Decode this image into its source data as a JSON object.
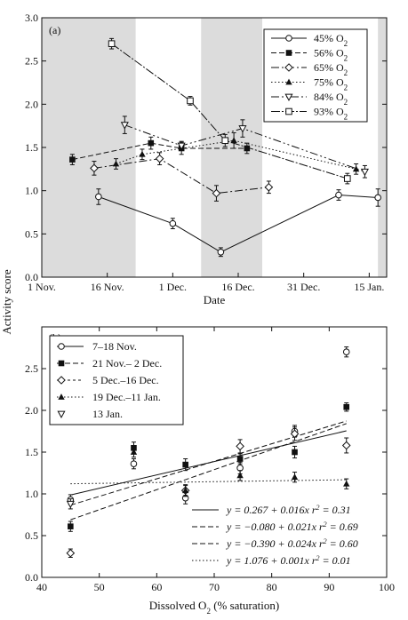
{
  "y_axis_label": "Activity score",
  "chart_data": [
    {
      "type": "line",
      "panel_label": "(a)",
      "xlabel": "Date",
      "ylabel": "Activity score",
      "x_ticks": [
        {
          "value": 0,
          "label": "1 Nov."
        },
        {
          "value": 15,
          "label": "16 Nov."
        },
        {
          "value": 30,
          "label": "1 Dec."
        },
        {
          "value": 45,
          "label": "16 Dec."
        },
        {
          "value": 60,
          "label": "31 Dec."
        },
        {
          "value": 75,
          "label": "15 Jan."
        }
      ],
      "xlim": [
        0,
        79
      ],
      "ylim": [
        0,
        3.0
      ],
      "y_ticks": [
        {
          "value": 0,
          "label": "0.0"
        },
        {
          "value": 0.5,
          "label": "0.5"
        },
        {
          "value": 1.0,
          "label": "1.0"
        },
        {
          "value": 1.5,
          "label": "1.5"
        },
        {
          "value": 2.0,
          "label": "2.0"
        },
        {
          "value": 2.5,
          "label": "2.5"
        },
        {
          "value": 3.0,
          "label": "3.0"
        }
      ],
      "shaded_bands": [
        [
          0,
          21.5
        ],
        [
          36.5,
          50.5
        ],
        [
          77,
          79
        ]
      ],
      "band_color": "#dcdcdc",
      "legend_position": "top-right",
      "series": [
        {
          "name": "45% O2",
          "name_base": "45% O",
          "name_sub": "2",
          "marker": "circle-open",
          "dash": "",
          "points": [
            {
              "x": 13,
              "y": 0.93,
              "err": 0.09
            },
            {
              "x": 30,
              "y": 0.62,
              "err": 0.06
            },
            {
              "x": 41,
              "y": 0.29,
              "err": 0.05
            },
            {
              "x": 68,
              "y": 0.95,
              "err": 0.06
            },
            {
              "x": 77,
              "y": 0.92,
              "err": 0.1
            }
          ]
        },
        {
          "name": "56% O2",
          "name_base": "56% O",
          "name_sub": "2",
          "marker": "square-filled",
          "dash": "6,3",
          "points": [
            {
              "x": 7,
              "y": 1.36,
              "err": 0.06
            },
            {
              "x": 25,
              "y": 1.55,
              "err": 0.07
            },
            {
              "x": 32,
              "y": 1.49,
              "err": 0.07
            },
            {
              "x": 47,
              "y": 1.49,
              "err": 0.06
            }
          ]
        },
        {
          "name": "65% O2",
          "name_base": "65% O",
          "name_sub": "2",
          "marker": "diamond-open",
          "dash": "9,3,2,3",
          "points": [
            {
              "x": 12,
              "y": 1.26,
              "err": 0.08
            },
            {
              "x": 27,
              "y": 1.37,
              "err": 0.07
            },
            {
              "x": 40,
              "y": 0.97,
              "err": 0.09
            },
            {
              "x": 52,
              "y": 1.04,
              "err": 0.07
            }
          ]
        },
        {
          "name": "75% O2",
          "name_base": "75% O",
          "name_sub": "2",
          "marker": "triangle-filled",
          "dash": "1.5,2.5",
          "points": [
            {
              "x": 17,
              "y": 1.31,
              "err": 0.06
            },
            {
              "x": 23,
              "y": 1.42,
              "err": 0.06
            },
            {
              "x": 44,
              "y": 1.58,
              "err": 0.09
            },
            {
              "x": 72,
              "y": 1.25,
              "err": 0.06
            }
          ]
        },
        {
          "name": "84% O2",
          "name_base": "84% O",
          "name_sub": "2",
          "marker": "triangle-down-open",
          "dash": "9,3,2,3,2,3",
          "points": [
            {
              "x": 19,
              "y": 1.76,
              "err": 0.1
            },
            {
              "x": 32,
              "y": 1.52,
              "err": 0.05
            },
            {
              "x": 46,
              "y": 1.72,
              "err": 0.1
            },
            {
              "x": 74,
              "y": 1.22,
              "err": 0.07
            }
          ]
        },
        {
          "name": "93% O2",
          "name_base": "93% O",
          "name_sub": "2",
          "marker": "square-open",
          "dash": "10,2,2,2",
          "points": [
            {
              "x": 16,
              "y": 2.7,
              "err": 0.06
            },
            {
              "x": 34,
              "y": 2.04,
              "err": 0.05
            },
            {
              "x": 42,
              "y": 1.58,
              "err": 0.07
            },
            {
              "x": 70,
              "y": 1.14,
              "err": 0.06
            }
          ]
        }
      ]
    },
    {
      "type": "scatter",
      "panel_label": "(b)",
      "xlabel_base": "Dissolved O",
      "xlabel_sub": "2",
      "xlabel_tail": " (% saturation)",
      "ylabel": "Activity score",
      "xlim": [
        40,
        100
      ],
      "ylim": [
        0,
        3.0
      ],
      "x_ticks": [
        {
          "value": 40,
          "label": "40"
        },
        {
          "value": 50,
          "label": "50"
        },
        {
          "value": 60,
          "label": "60"
        },
        {
          "value": 70,
          "label": "70"
        },
        {
          "value": 80,
          "label": "80"
        },
        {
          "value": 90,
          "label": "90"
        },
        {
          "value": 100,
          "label": "100"
        }
      ],
      "y_ticks": [
        {
          "value": 0,
          "label": "0.0"
        },
        {
          "value": 0.5,
          "label": "0.5"
        },
        {
          "value": 1.0,
          "label": "1.0"
        },
        {
          "value": 1.5,
          "label": "1.5"
        },
        {
          "value": 2.0,
          "label": "2.0"
        },
        {
          "value": 2.5,
          "label": "2.5"
        }
      ],
      "legend_position": "top-left",
      "series": [
        {
          "name": "7–18 Nov.",
          "marker": "circle-open",
          "dash": "",
          "points": [
            {
              "x": 45,
              "y": 0.93,
              "err": 0.06
            },
            {
              "x": 56,
              "y": 1.36,
              "err": 0.06
            },
            {
              "x": 65,
              "y": 0.95,
              "err": 0.07
            },
            {
              "x": 74.5,
              "y": 1.31,
              "err": 0.07
            },
            {
              "x": 84,
              "y": 1.75,
              "err": 0.07
            },
            {
              "x": 93,
              "y": 2.7,
              "err": 0.06
            }
          ]
        },
        {
          "name": "21 Nov.– 2 Dec.",
          "marker": "square-filled",
          "dash": "6,3",
          "points": [
            {
              "x": 45,
              "y": 0.61,
              "err": 0.06
            },
            {
              "x": 56,
              "y": 1.55,
              "err": 0.07
            },
            {
              "x": 65,
              "y": 1.35,
              "err": 0.07
            },
            {
              "x": 74.5,
              "y": 1.42,
              "err": 0.06
            },
            {
              "x": 84,
              "y": 1.5,
              "err": 0.07
            },
            {
              "x": 93,
              "y": 2.04,
              "err": 0.05
            }
          ]
        },
        {
          "name": "5 Dec.–16 Dec.",
          "marker": "diamond-open",
          "dash": "3,3",
          "points": [
            {
              "x": 45,
              "y": 0.29,
              "err": 0.05
            },
            {
              "x": 65,
              "y": 1.04,
              "err": 0.07
            },
            {
              "x": 74.5,
              "y": 1.57,
              "err": 0.08
            },
            {
              "x": 84,
              "y": 1.72,
              "err": 0.08
            },
            {
              "x": 93,
              "y": 1.58,
              "err": 0.09
            }
          ]
        },
        {
          "name": "19 Dec.–11 Jan.",
          "marker": "triangle-filled",
          "dash": "1.5,2.5",
          "points": [
            {
              "x": 56,
              "y": 1.5,
              "err": 0.06
            },
            {
              "x": 65,
              "y": 1.04,
              "err": 0.06
            },
            {
              "x": 74.5,
              "y": 1.22,
              "err": 0.06
            },
            {
              "x": 84,
              "y": 1.2,
              "err": 0.06
            },
            {
              "x": 93,
              "y": 1.12,
              "err": 0.06
            }
          ]
        },
        {
          "name": "13 Jan.",
          "marker": "triangle-down-open",
          "dash": "",
          "points": [
            {
              "x": 45,
              "y": 0.88,
              "err": 0.06
            }
          ]
        }
      ],
      "fits": [
        {
          "x_range": [
            45,
            93
          ],
          "intercept": 0.267,
          "slope": 0.016,
          "dash": "",
          "eq": "y = 0.267 + 0.016x r",
          "r2": " = 0.31"
        },
        {
          "x_range": [
            45,
            93
          ],
          "intercept": -0.08,
          "slope": 0.021,
          "dash": "6,3",
          "eq": "y = −0.080 + 0.021x r",
          "r2": " = 0.69"
        },
        {
          "x_range": [
            45,
            93
          ],
          "intercept": -0.39,
          "slope": 0.024,
          "dash": "6,3",
          "eq": "y = −0.390 + 0.024x r",
          "r2": " = 0.60"
        },
        {
          "x_range": [
            45,
            93
          ],
          "intercept": 1.076,
          "slope": 0.001,
          "dash": "1.5,2.5",
          "eq": "y = 1.076 + 0.001x r",
          "r2": " = 0.01"
        }
      ],
      "fit_sup": "2"
    }
  ]
}
